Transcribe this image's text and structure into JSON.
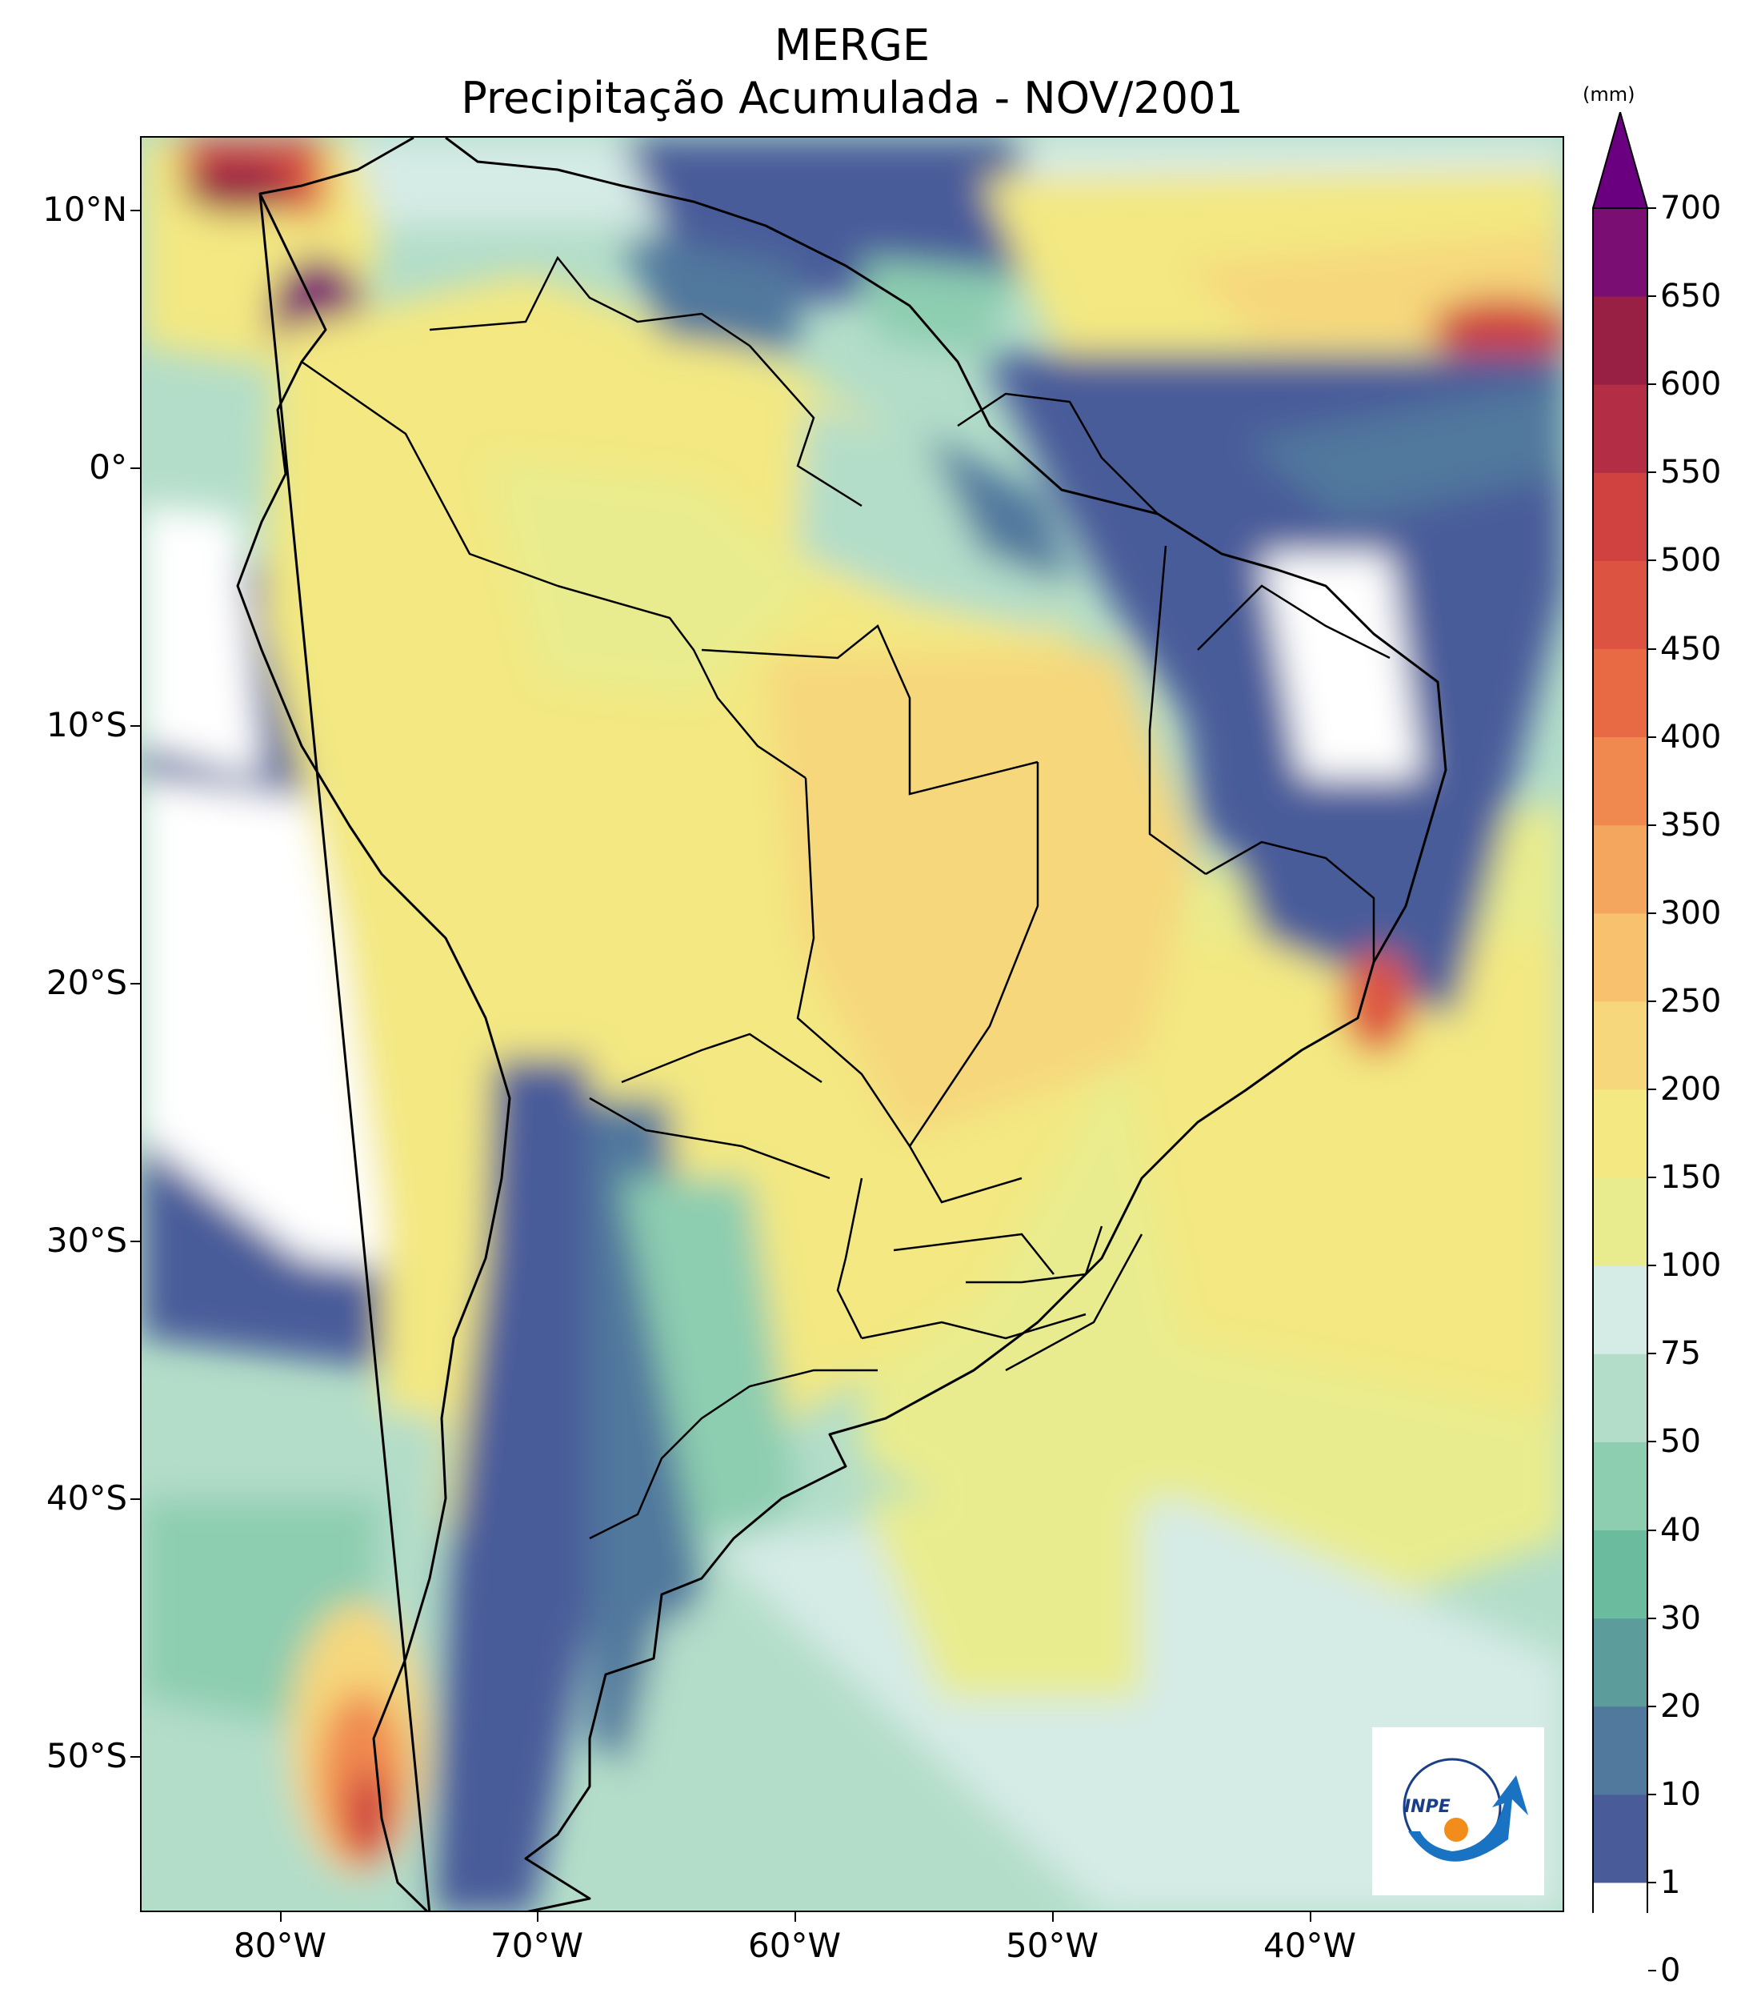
{
  "title": "MERGE",
  "subtitle": "Precipitação Acumulada - NOV/2001",
  "axes": {
    "lat_labels": [
      "10°N",
      "0°",
      "10°S",
      "20°S",
      "30°S",
      "40°S",
      "50°S"
    ],
    "lon_labels": [
      "80°W",
      "70°W",
      "60°W",
      "50°W",
      "40°W"
    ]
  },
  "colorbar": {
    "unit": "(mm)",
    "levels": [
      "0",
      "1",
      "10",
      "20",
      "30",
      "40",
      "50",
      "75",
      "100",
      "150",
      "200",
      "250",
      "300",
      "350",
      "400",
      "450",
      "500",
      "550",
      "600",
      "650",
      "700"
    ],
    "colors": [
      "#ffffff",
      "#4a5b9a",
      "#51789d",
      "#5c9d9c",
      "#6bbc9f",
      "#8dcdb0",
      "#b3ddc9",
      "#d5ebe6",
      "#e9ec8e",
      "#f3e882",
      "#f6d77c",
      "#f7c16e",
      "#f5a65e",
      "#f08950",
      "#e76a45",
      "#dd5341",
      "#cf4240",
      "#b32e45",
      "#982044",
      "#7a0e72"
    ],
    "extend_color": "#6a0080"
  },
  "logo": {
    "text": "INPE"
  },
  "colors": {
    "ocean_dry": "#4a5b9a",
    "moderate": "#e9ec8e",
    "heavy": "#d8483e",
    "extreme": "#7a0e72"
  }
}
